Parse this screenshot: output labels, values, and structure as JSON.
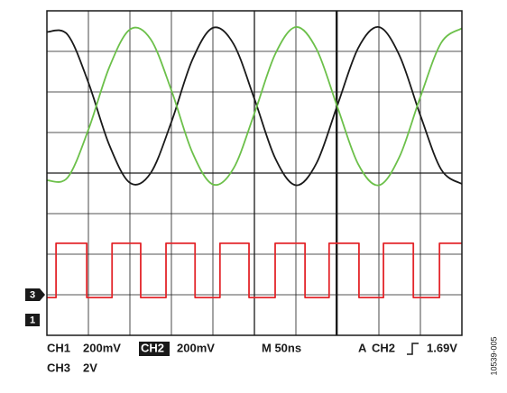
{
  "chart_data": {
    "type": "line",
    "xlim": [
      0,
      10
    ],
    "ylim": [
      0,
      8
    ],
    "xticks": [
      0,
      1,
      2,
      3,
      4,
      5,
      6,
      7,
      8,
      9,
      10
    ],
    "yticks": [
      0,
      1,
      2,
      3,
      4,
      5,
      6,
      7,
      8
    ],
    "grid": true,
    "series": [
      {
        "name": "CH1",
        "color": "#1a1a1a",
        "smooth": true,
        "x": [
          0,
          0.5,
          1,
          1.5,
          2,
          2.5,
          3,
          3.5,
          4,
          4.5,
          5,
          5.5,
          6,
          6.5,
          7,
          7.5,
          8,
          8.5,
          9,
          9.5,
          10
        ],
        "values": [
          7.48,
          7.41,
          6.23,
          4.7,
          3.76,
          4.0,
          5.26,
          6.78,
          7.58,
          7.18,
          5.83,
          4.37,
          3.7,
          4.25,
          5.67,
          7.08,
          7.6,
          6.89,
          5.42,
          4.09,
          3.73
        ]
      },
      {
        "name": "CH2",
        "color": "#6cc04a",
        "smooth": true,
        "x": [
          0,
          0.5,
          1,
          1.5,
          2,
          2.5,
          3,
          3.5,
          4,
          4.5,
          5,
          5.5,
          6,
          6.5,
          7,
          7.5,
          8,
          8.5,
          9,
          9.5,
          10
        ],
        "values": [
          3.82,
          3.89,
          5.07,
          6.6,
          7.54,
          7.3,
          6.04,
          4.52,
          3.72,
          4.12,
          5.47,
          6.93,
          7.6,
          7.05,
          5.63,
          4.22,
          3.7,
          4.41,
          5.88,
          7.21,
          7.57
        ]
      },
      {
        "name": "CH3",
        "color": "#e3262b",
        "smooth": false,
        "x": [
          0,
          0.22,
          0.22,
          0.96,
          0.96,
          1.57,
          1.57,
          2.26,
          2.26,
          2.87,
          2.87,
          3.57,
          3.57,
          4.17,
          4.17,
          4.87,
          4.87,
          5.5,
          5.5,
          6.22,
          6.22,
          6.8,
          6.8,
          7.52,
          7.52,
          8.11,
          8.11,
          8.83,
          8.83,
          9.46,
          9.46,
          10
        ],
        "values": [
          0.93,
          0.93,
          2.27,
          2.27,
          0.93,
          0.93,
          2.27,
          2.27,
          0.93,
          0.93,
          2.27,
          2.27,
          0.93,
          0.93,
          2.27,
          2.27,
          0.93,
          0.93,
          2.27,
          2.27,
          0.93,
          0.93,
          2.27,
          2.27,
          0.93,
          0.93,
          2.27,
          2.27,
          0.93,
          0.93,
          2.27,
          2.27
        ]
      }
    ],
    "channel_markers": [
      "3",
      "1"
    ],
    "footer": {
      "ch1": "CH1",
      "ch1_scale": "200mV",
      "ch2": "CH2",
      "ch2_scale": "200mV",
      "timebase": "M 50ns",
      "trigger_mode": "A",
      "trigger_source": "CH2",
      "trigger_level": "1.69V",
      "ch3": "CH3",
      "ch3_scale": "2V"
    },
    "figure_id": "10539-005"
  }
}
